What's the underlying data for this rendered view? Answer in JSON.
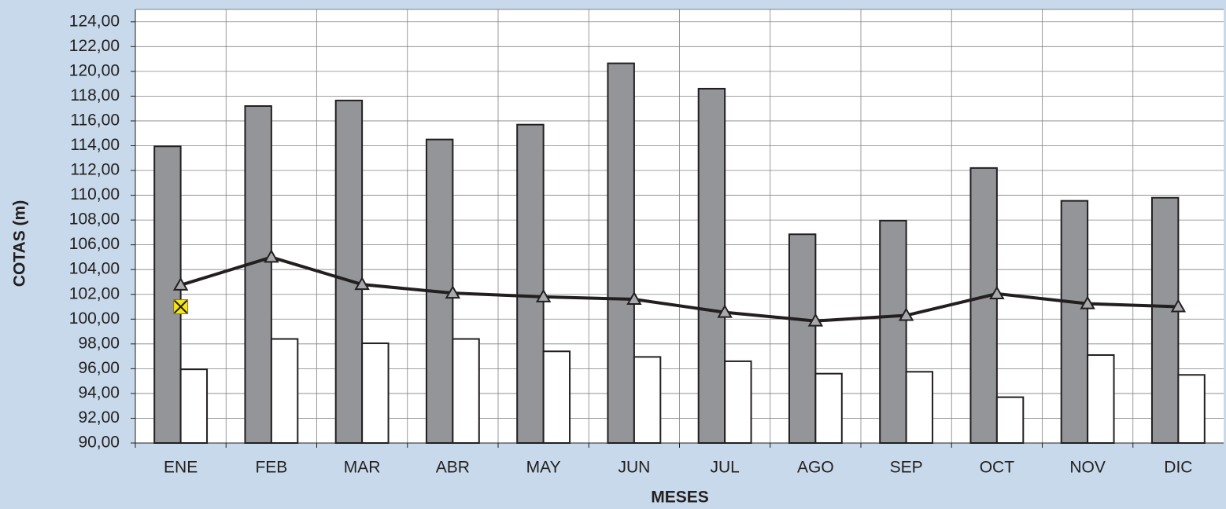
{
  "chart_data": {
    "type": "combo",
    "x_label": "MESES",
    "y_label": "COTAS (m)",
    "categories": [
      "ENE",
      "FEB",
      "MAR",
      "ABR",
      "MAY",
      "JUN",
      "JUL",
      "AGO",
      "SEP",
      "OCT",
      "NOV",
      "DIC"
    ],
    "series": [
      {
        "kind": "bar",
        "color": "#939598",
        "values": [
          113.95,
          117.2,
          117.65,
          114.5,
          115.7,
          120.65,
          118.6,
          106.85,
          107.95,
          112.2,
          109.55,
          109.8
        ]
      },
      {
        "kind": "bar",
        "color": "#ffffff",
        "values": [
          95.95,
          98.4,
          98.05,
          98.4,
          97.4,
          96.95,
          96.6,
          95.6,
          95.75,
          93.7,
          97.1,
          95.5
        ]
      },
      {
        "kind": "line",
        "color": "#231f20",
        "marker_color": "#a7a9ac",
        "values": [
          102.75,
          105.0,
          102.8,
          102.1,
          101.8,
          101.6,
          100.55,
          99.85,
          100.3,
          102.05,
          101.25,
          101.0
        ]
      },
      {
        "kind": "point",
        "color": "#f5e61b",
        "values": [
          101.0,
          null,
          null,
          null,
          null,
          null,
          null,
          null,
          null,
          null,
          null,
          null
        ]
      }
    ],
    "ylim": [
      90,
      125
    ],
    "yticks": [
      {
        "value": 90,
        "label": "90,00"
      },
      {
        "value": 92,
        "label": "92,00"
      },
      {
        "value": 94,
        "label": "94,00"
      },
      {
        "value": 96,
        "label": "96,00"
      },
      {
        "value": 98,
        "label": "98,00"
      },
      {
        "value": 100,
        "label": "100,00"
      },
      {
        "value": 102,
        "label": "102,00"
      },
      {
        "value": 104,
        "label": "104,00"
      },
      {
        "value": 106,
        "label": "106,00"
      },
      {
        "value": 108,
        "label": "108,00"
      },
      {
        "value": 110,
        "label": "110,00"
      },
      {
        "value": 112,
        "label": "112,00"
      },
      {
        "value": 114,
        "label": "114,00"
      },
      {
        "value": 116,
        "label": "116,00"
      },
      {
        "value": 118,
        "label": "118,00"
      },
      {
        "value": 120,
        "label": "120,00"
      },
      {
        "value": 122,
        "label": "122,00"
      },
      {
        "value": 124,
        "label": "124,00"
      }
    ],
    "grid": true
  }
}
